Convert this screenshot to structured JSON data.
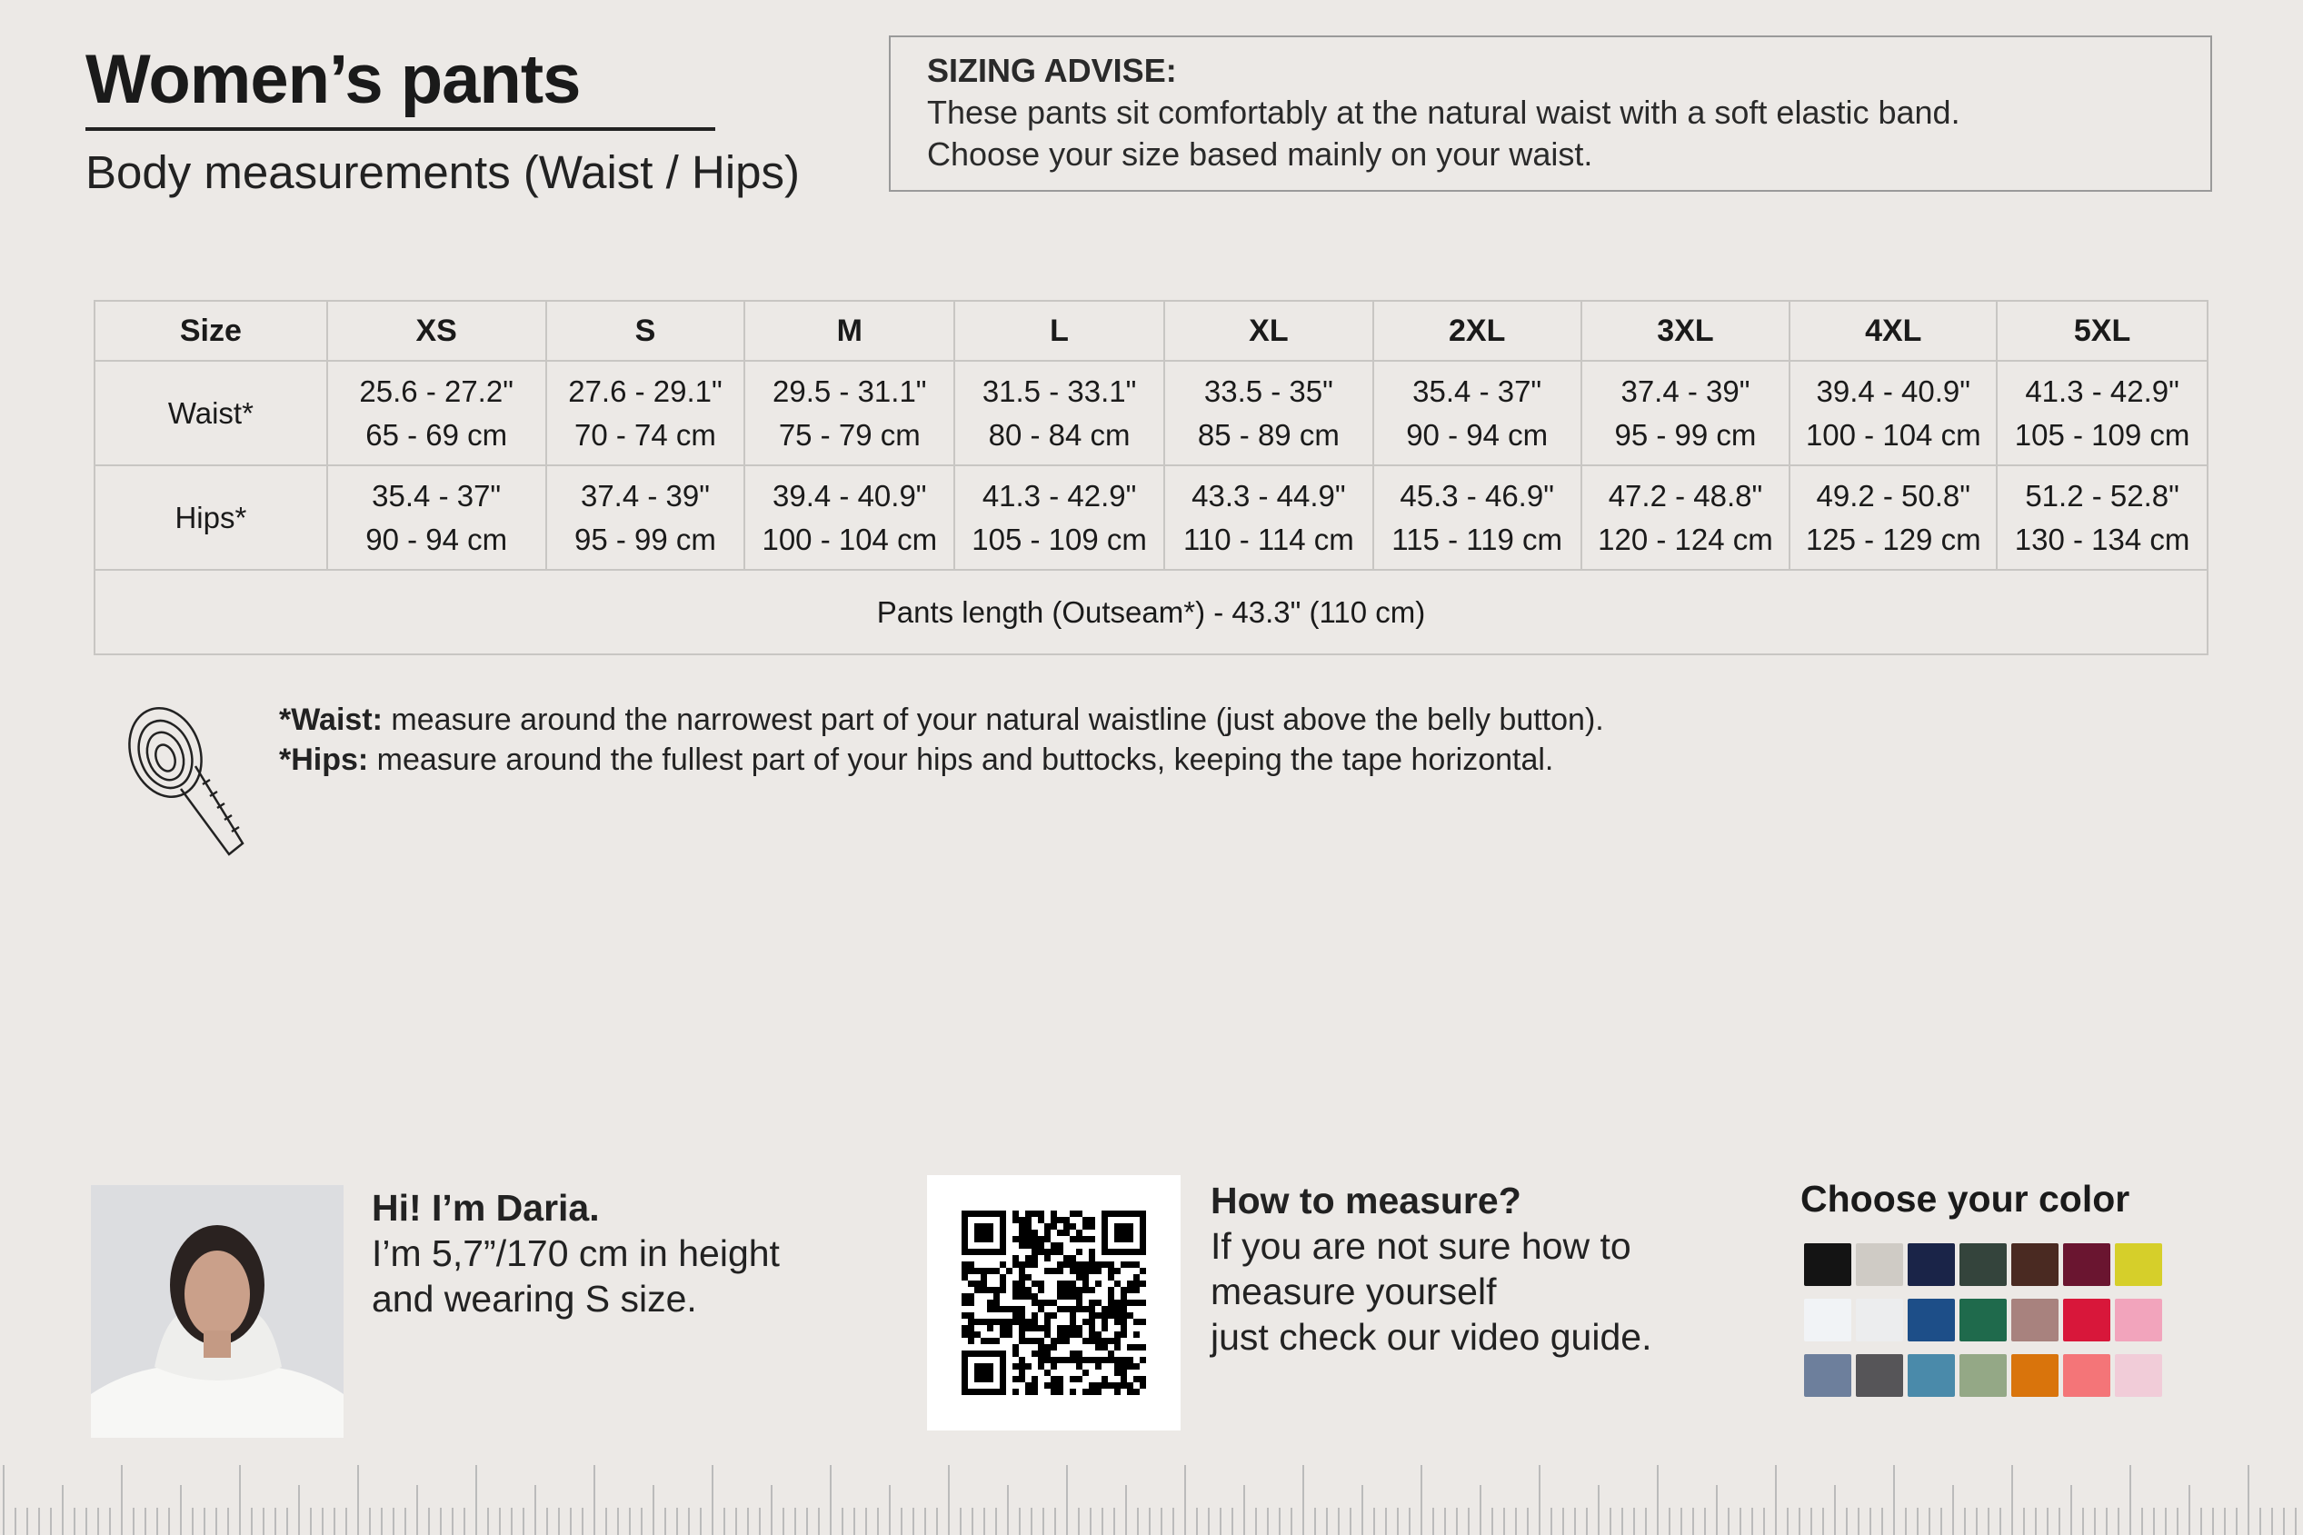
{
  "header": {
    "title": "Women’s pants",
    "subtitle": "Body measurements (Waist / Hips)"
  },
  "advice": {
    "heading": "SIZING ADVISE:",
    "line1": "These pants sit comfortably at the natural waist with a soft elastic band.",
    "line2": "Choose your size based mainly on your waist."
  },
  "table": {
    "headers": [
      "Size",
      "XS",
      "S",
      "M",
      "L",
      "XL",
      "2XL",
      "3XL",
      "4XL",
      "5XL"
    ],
    "rows": [
      {
        "label": "Waist*",
        "inches": [
          "25.6 - 27.2\"",
          "27.6 - 29.1\"",
          "29.5 - 31.1\"",
          "31.5 - 33.1\"",
          "33.5 - 35\"",
          "35.4 - 37\"",
          "37.4 - 39\"",
          "39.4 - 40.9\"",
          "41.3 - 42.9\""
        ],
        "cm": [
          "65 - 69 cm",
          "70 - 74 cm",
          "75 - 79 cm",
          "80 - 84 cm",
          "85 - 89 cm",
          "90 - 94 cm",
          "95 - 99 cm",
          "100 - 104 cm",
          "105 - 109 cm"
        ]
      },
      {
        "label": "Hips*",
        "inches": [
          "35.4 - 37\"",
          "37.4 - 39\"",
          "39.4 - 40.9\"",
          "41.3 - 42.9\"",
          "43.3 - 44.9\"",
          "45.3 - 46.9\"",
          "47.2 - 48.8\"",
          "49.2 - 50.8\"",
          "51.2 - 52.8\""
        ],
        "cm": [
          "90 - 94 cm",
          "95 - 99 cm",
          "100 - 104 cm",
          "105 - 109 cm",
          "110 - 114 cm",
          "115 - 119 cm",
          "120 - 124 cm",
          "125 - 129 cm",
          "130 - 134 cm"
        ]
      }
    ],
    "length": "Pants length (Outseam*) - 43.3\" (110 cm)"
  },
  "notes": [
    {
      "term": "*Waist:",
      "text": " measure around the narrowest part of your natural waistline (just above the belly button)."
    },
    {
      "term": "*Hips:",
      "text": " measure around the fullest part of your hips and buttocks, keeping the tape horizontal."
    }
  ],
  "model": {
    "greeting": "Hi! I’m Daria.",
    "line1": "I’m 5,7”/170 cm in height",
    "line2": "and wearing S size."
  },
  "measure": {
    "heading": "How to measure?",
    "line1": "If you are not sure how to",
    "line2": "measure yourself",
    "line3": "just check our video guide."
  },
  "colors": {
    "title": "Choose your color",
    "swatches": [
      "#141414",
      "#cfcbc5",
      "#1a2448",
      "#34443c",
      "#4a2a22",
      "#6a1530",
      "#d6cf2a",
      "#f1f3f6",
      "#ecedee",
      "#1d4e88",
      "#1f6a4c",
      "#a8827e",
      "#d8173a",
      "#f2a4bc",
      "#6d7f9c",
      "#565558",
      "#4a8aaa",
      "#94a886",
      "#d9740c",
      "#f47578",
      "#f1ccd8"
    ]
  }
}
